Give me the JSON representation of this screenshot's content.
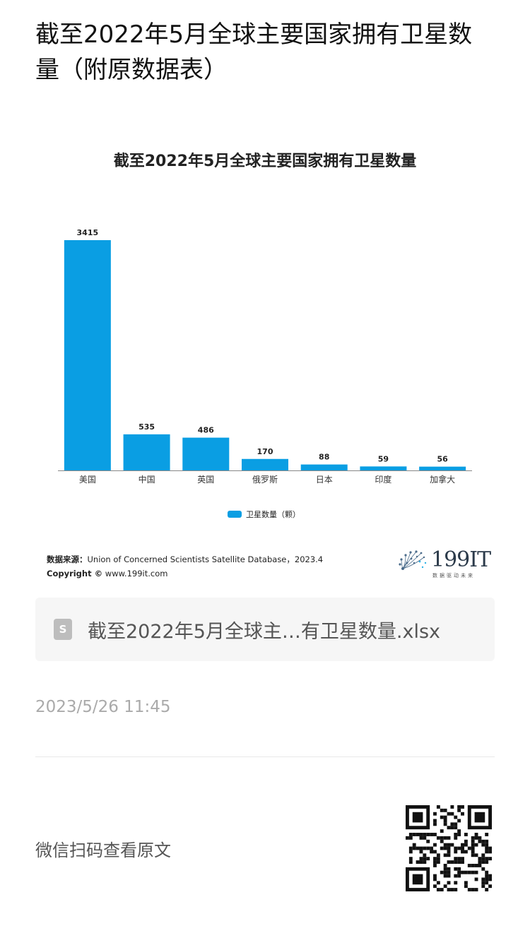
{
  "article": {
    "title": "截至2022年5月全球主要国家拥有卫星数量（附原数据表）"
  },
  "chart_data": {
    "type": "bar",
    "title": "截至2022年5月全球主要国家拥有卫星数量",
    "categories": [
      "美国",
      "中国",
      "英国",
      "俄罗斯",
      "日本",
      "印度",
      "加拿大"
    ],
    "series": [
      {
        "name": "卫星数量（颗）",
        "values": [
          3415,
          535,
          486,
          170,
          88,
          59,
          56
        ],
        "color": "#0a9ee3"
      }
    ],
    "ylim": [
      0,
      3415
    ],
    "grid": false,
    "legend": "bottom-center",
    "data_labels": true
  },
  "source": {
    "label": "数据来源：",
    "text": "Union of Concerned Scientists Satellite Database，2023.4",
    "copyright_label": "Copyright ©",
    "copyright_text": "www.199it.com"
  },
  "logo": {
    "text": "199IT",
    "subtitle": "数据驱动未来"
  },
  "file": {
    "icon": "spreadsheet-icon",
    "icon_letter": "S",
    "name": "截至2022年5月全球主…有卫星数量.xlsx"
  },
  "date": "2023/5/26 11:45",
  "footer": {
    "hint": "微信扫码查看原文",
    "qr_icon": "qr-code-icon"
  }
}
